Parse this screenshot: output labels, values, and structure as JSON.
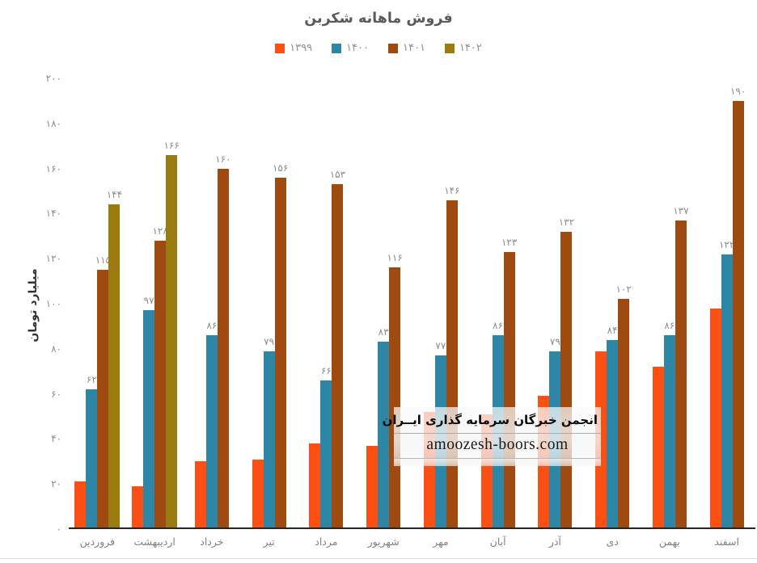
{
  "page": {
    "background": "#ffffff"
  },
  "chart_data": {
    "type": "bar",
    "title": "فروش ماهانه شکربن",
    "xlabel": "",
    "ylabel": "میلیارد تومان",
    "ylim": [
      0,
      200
    ],
    "ytick_step": 20,
    "ytick_labels": [
      "۰",
      "۲۰",
      "۴۰",
      "۶۰",
      "۸۰",
      "۱۰۰",
      "۱۲۰",
      "۱۴۰",
      "۱۶۰",
      "۱۸۰",
      "۲۰۰"
    ],
    "grid": false,
    "legend_position": "top",
    "categories": [
      "فروردین",
      "اردیبهشت",
      "خرداد",
      "تیر",
      "مرداد",
      "شهریور",
      "مهر",
      "آبان",
      "آذر",
      "دی",
      "بهمن",
      "اسفند"
    ],
    "series": [
      {
        "name": "۱۳۹۹",
        "color": "#fc4f13",
        "values": [
          21,
          19,
          30,
          31,
          38,
          37,
          52,
          51,
          59,
          79,
          72,
          98
        ],
        "data_labels": [
          "",
          "",
          "",
          "",
          "",
          "",
          "",
          "",
          "",
          "",
          "",
          ""
        ]
      },
      {
        "name": "۱۴۰۰",
        "color": "#2e86a6",
        "values": [
          62,
          97,
          86,
          79,
          66,
          83,
          77,
          86,
          79,
          84,
          86,
          122
        ],
        "data_labels": [
          "۶۲",
          "۹۷",
          "۸۶",
          "۷۹",
          "۶۶",
          "۸۳",
          "۷۷",
          "۸۶",
          "۷۹",
          "۸۴",
          "۸۶",
          "۱۲۲"
        ]
      },
      {
        "name": "۱۴۰۱",
        "color": "#9e4a10",
        "values": [
          115,
          128,
          160,
          156,
          153,
          116,
          146,
          123,
          132,
          102,
          137,
          190
        ],
        "data_labels": [
          "۱۱۵",
          "۱۲۸",
          "۱۶۰",
          "۱۵۶",
          "۱۵۳",
          "۱۱۶",
          "۱۴۶",
          "۱۲۳",
          "۱۳۲",
          "۱۰۲",
          "۱۳۷",
          "۱۹۰"
        ]
      },
      {
        "name": "۱۴۰۲",
        "color": "#9a7b10",
        "values": [
          144,
          166,
          null,
          null,
          null,
          null,
          null,
          null,
          null,
          null,
          null,
          null
        ],
        "data_labels": [
          "۱۴۴",
          "۱۶۶",
          "",
          "",
          "",
          "",
          "",
          "",
          "",
          "",
          "",
          ""
        ]
      }
    ]
  },
  "watermark": {
    "line1": "انجمن خبرگان سرمایه گذاری ایــران",
    "line2": "amoozesh-boors.com"
  }
}
